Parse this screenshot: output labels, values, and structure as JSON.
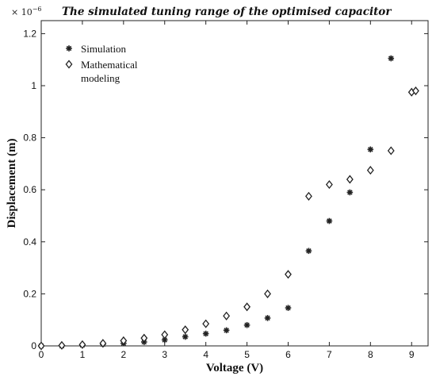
{
  "chart_data": {
    "type": "scatter",
    "title": "The simulated tuning range of the optimised capacitor",
    "multiplier": "× 10",
    "multiplier_exponent": "−6",
    "xlabel": "Voltage (V)",
    "ylabel": "Displacement (m)",
    "xlim": [
      0,
      9.4
    ],
    "ylim": [
      0,
      1.25
    ],
    "x_ticks": [
      "0",
      "1",
      "2",
      "3",
      "4",
      "5",
      "6",
      "7",
      "8",
      "9"
    ],
    "y_ticks": [
      "0",
      "0.2",
      "0.4",
      "0.6",
      "0.8",
      "1",
      "1.2"
    ],
    "grid": false,
    "legend_position": "top-left",
    "series": [
      {
        "name": "Simulation",
        "marker": "asterisk",
        "x": [
          0,
          0.5,
          1,
          1.5,
          2,
          2.5,
          3,
          3.5,
          4,
          4.5,
          5,
          5.5,
          6,
          6.5,
          7,
          7.5,
          8,
          8.5
        ],
        "y": [
          0,
          0.0,
          0.003,
          0.006,
          0.01,
          0.015,
          0.023,
          0.035,
          0.047,
          0.06,
          0.08,
          0.107,
          0.146,
          0.365,
          0.48,
          0.59,
          0.755,
          1.105
        ]
      },
      {
        "name": "Mathematical\nmodeling",
        "marker": "diamond",
        "x": [
          0,
          0.5,
          1,
          1.5,
          2,
          2.5,
          3,
          3.5,
          4,
          4.5,
          5,
          5.5,
          6,
          6.5,
          7,
          7.5,
          8,
          8.5,
          9,
          9.1
        ],
        "y": [
          0,
          0.002,
          0.005,
          0.01,
          0.02,
          0.03,
          0.043,
          0.062,
          0.085,
          0.115,
          0.15,
          0.2,
          0.275,
          0.575,
          0.62,
          0.64,
          0.675,
          0.75,
          0.975,
          0.98
        ]
      }
    ]
  }
}
